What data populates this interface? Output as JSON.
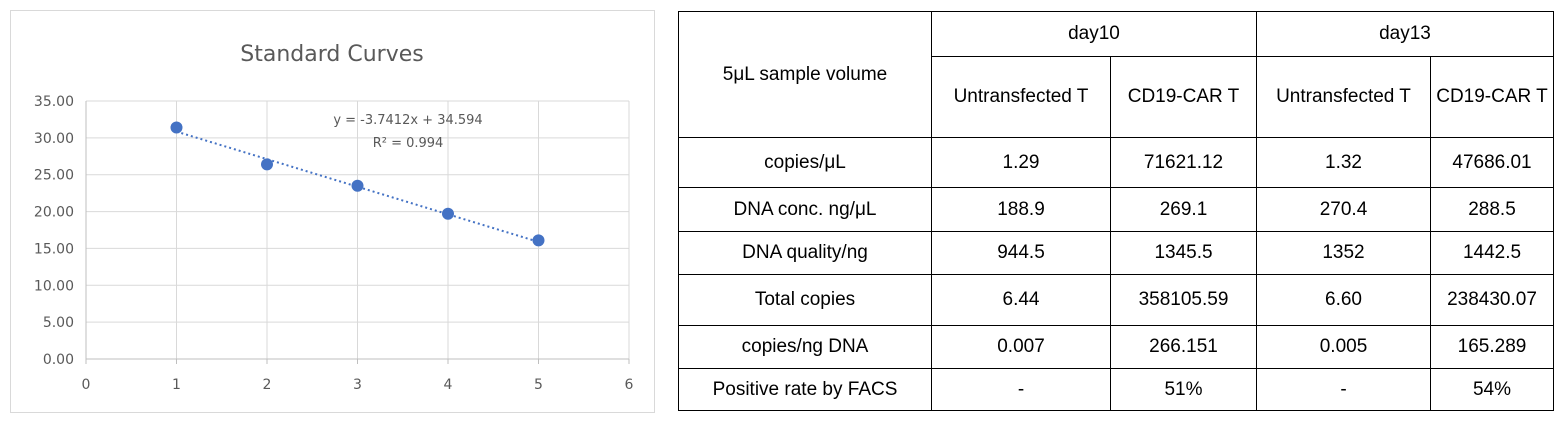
{
  "chart_data": {
    "type": "scatter",
    "title": "Standard Curves",
    "x": [
      1,
      2,
      3,
      4,
      5
    ],
    "y": [
      31.4,
      26.4,
      23.5,
      19.7,
      16.1
    ],
    "xlim": [
      0,
      6
    ],
    "ylim": [
      0,
      35
    ],
    "x_ticks": [
      "0",
      "1",
      "2",
      "3",
      "4",
      "5",
      "6"
    ],
    "y_ticks": [
      "0.00",
      "5.00",
      "10.00",
      "15.00",
      "20.00",
      "25.00",
      "30.00",
      "35.00"
    ],
    "trendline": {
      "slope": -3.7412,
      "intercept": 34.594,
      "style": "dotted"
    },
    "equation": "y = -3.7412x + 34.594",
    "r_squared": "R² = 0.994",
    "grid": true,
    "legend": "none",
    "marker_color": "#4472c4"
  },
  "table": {
    "corner": "5μL sample volume",
    "groups": [
      "day10",
      "day13"
    ],
    "subheaders": [
      "Untransfected T",
      "CD19-CAR T",
      "Untransfected T",
      "CD19-CAR T"
    ],
    "rows": [
      {
        "label": "copies/μL",
        "values": [
          "1.29",
          "71621.12",
          "1.32",
          "47686.01"
        ]
      },
      {
        "label": "DNA conc. ng/μL",
        "values": [
          "188.9",
          "269.1",
          "270.4",
          "288.5"
        ]
      },
      {
        "label": "DNA quality/ng",
        "values": [
          "944.5",
          "1345.5",
          "1352",
          "1442.5"
        ]
      },
      {
        "label": "Total copies",
        "values": [
          "6.44",
          "358105.59",
          "6.60",
          "238430.07"
        ]
      },
      {
        "label": "copies/ng DNA",
        "values": [
          "0.007",
          "266.151",
          "0.005",
          "165.289"
        ]
      },
      {
        "label": "Positive rate by FACS",
        "values": [
          "-",
          "51%",
          "-",
          "54%"
        ]
      }
    ]
  }
}
